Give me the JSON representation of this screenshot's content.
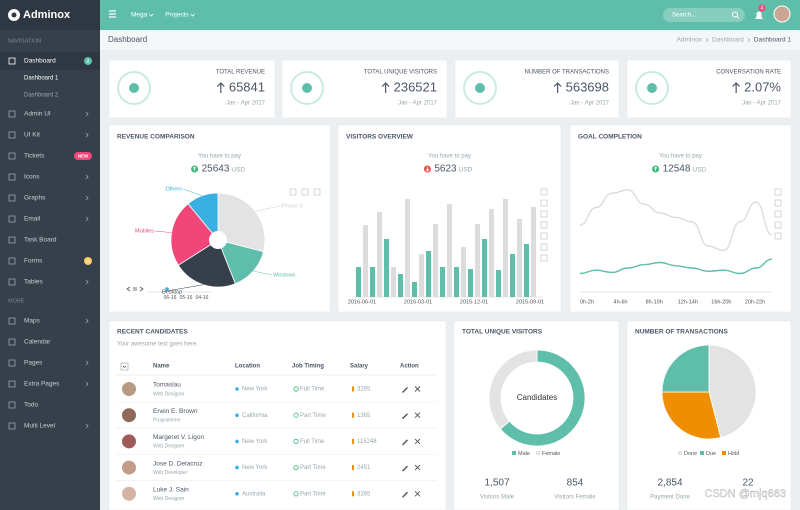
{
  "topbar": {
    "brand": "Adminox",
    "menus": [
      "Mega",
      "Projects"
    ],
    "search_placeholder": "Search...",
    "notifications": "4"
  },
  "sidebar": {
    "sections": [
      {
        "title": "NAVIGATION",
        "items": [
          {
            "label": "Dashboard",
            "badge": "2",
            "badge_color": "#5fbeaa",
            "children": [
              "Dashboard 1",
              "Dashboard 2"
            ]
          },
          {
            "label": "Admin UI",
            "submenu": true
          },
          {
            "label": "UI Kit",
            "submenu": true
          },
          {
            "label": "Tickets",
            "badge": "NEW",
            "badge_color": "#f0467a"
          },
          {
            "label": "Icons",
            "submenu": true
          },
          {
            "label": "Graphs",
            "submenu": true
          },
          {
            "label": "Email",
            "submenu": true
          },
          {
            "label": "Task Board"
          },
          {
            "label": "Forms",
            "badge": "12",
            "badge_color": "#f9c851"
          },
          {
            "label": "Tables",
            "submenu": true
          }
        ]
      },
      {
        "title": "MORE",
        "items": [
          {
            "label": "Maps",
            "submenu": true
          },
          {
            "label": "Calendar"
          },
          {
            "label": "Pages",
            "submenu": true
          },
          {
            "label": "Extra Pages",
            "submenu": true
          },
          {
            "label": "Todo"
          },
          {
            "label": "Multi Level",
            "submenu": true
          }
        ]
      }
    ]
  },
  "breadcrumb": {
    "page": "Dashboard",
    "trail": [
      "Adminox",
      "Dashboard",
      "Dashboard 1"
    ]
  },
  "stats": [
    {
      "label": "TOTAL REVENUE",
      "value": "65841",
      "period": "Jan - Apr 2017"
    },
    {
      "label": "TOTAL UNIQUE VISITORS",
      "value": "236521",
      "period": "Jan - Apr 2017"
    },
    {
      "label": "NUMBER OF TRANSACTIONS",
      "value": "563698",
      "period": "Jan - Apr 2017"
    },
    {
      "label": "CONVERSATION RATE",
      "value": "2.07%",
      "period": "Jan - Apr 2017"
    }
  ],
  "charts": {
    "revenue": {
      "type": "pie",
      "title": "REVENUE COMPARISON",
      "caption": "You have to pay",
      "amount": "25643",
      "currency": "USD",
      "trend": "up",
      "categories": [
        "iPhone 5",
        "Windows",
        "Desktop",
        "Mobiles",
        "Others"
      ],
      "values": [
        29,
        15,
        22,
        23,
        11
      ],
      "colors": [
        "#e3e3e3",
        "#5fbeaa",
        "#36404a",
        "#f0467a",
        "#3ab0e2"
      ],
      "timeline": [
        "06-16",
        "05-16",
        "04-16"
      ]
    },
    "visitors": {
      "type": "bar",
      "title": "VISITORS OVERVIEW",
      "caption": "You have to pay",
      "amount": "5623",
      "currency": "USD",
      "trend": "down",
      "categories": [
        "2016-06-01",
        null,
        null,
        null,
        "2016-03-01",
        null,
        null,
        null,
        "2015-12-01",
        null,
        null,
        null,
        "2015-09-01"
      ],
      "series": [
        {
          "color": "#5fbeaa",
          "values": [
            30,
            30,
            58,
            23,
            15,
            46,
            30,
            30,
            28,
            58,
            27,
            43,
            53
          ]
        },
        {
          "color": "#dcdcdc",
          "values": [
            72,
            85,
            30,
            98,
            43,
            73,
            93,
            50,
            73,
            88,
            98,
            78,
            90
          ]
        }
      ]
    },
    "goal": {
      "type": "line",
      "title": "GOAL COMPLETION",
      "caption": "You have to pay",
      "amount": "12548",
      "currency": "USD",
      "trend": "up",
      "categories": [
        "0h-2h",
        "4h-6h",
        "8h-10h",
        "12h-14h",
        "16h-20h",
        "20h-22h"
      ],
      "series": [
        {
          "color": "#dcdcdc",
          "values": [
            59,
            75,
            88,
            91,
            78,
            70,
            66,
            62,
            40,
            36,
            62,
            80,
            50
          ]
        },
        {
          "color": "#5fbeaa",
          "values": [
            15,
            18,
            16,
            20,
            23,
            25,
            22,
            20,
            17,
            18,
            15,
            20,
            28
          ]
        }
      ]
    },
    "unique_visitors": {
      "type": "donut",
      "title": "TOTAL UNIQUE VISITORS",
      "center_label": "Candidates",
      "categories": [
        "Male",
        "Female"
      ],
      "values": [
        1507,
        854
      ],
      "value_labels": [
        "1,507",
        "854"
      ],
      "footers": [
        "Visitors Male",
        "Visitors Female"
      ],
      "colors": [
        "#5fbeaa",
        "#e3e3e3"
      ]
    },
    "transactions": {
      "type": "pie",
      "title": "NUMBER OF TRANSACTIONS",
      "categories": [
        "Done",
        "Due",
        "Hold"
      ],
      "values": [
        46,
        25,
        29
      ],
      "colors": [
        "#e3e3e3",
        "#5fbeaa",
        "#ef8f00"
      ],
      "footers": [
        {
          "value": "2,854",
          "label": "Payment Done"
        },
        {
          "value": "22"
        }
      ]
    }
  },
  "candidates": {
    "title": "RECENT CANDIDATES",
    "subtitle": "Your awesome text goes here.",
    "columns": [
      "Name",
      "Location",
      "Job Timing",
      "Salary",
      "Action"
    ],
    "rows": [
      [
        "Tomaslau",
        "Web Designer",
        "New York",
        "Full Time",
        "3265"
      ],
      [
        "Erwin E. Brown",
        "Programmer",
        "California",
        "Part Time",
        "1365"
      ],
      [
        "Margeret V. Ligon",
        "Web Designer",
        "New York",
        "Full Time",
        "115248"
      ],
      [
        "Jose D. Delacruz",
        "Web Developer",
        "New York",
        "Part Time",
        "2451"
      ],
      [
        "Luke J. Sain",
        "Web Designer",
        "Australia",
        "Part Time",
        "3265"
      ]
    ]
  },
  "watermark": "CSDN @mjq663"
}
